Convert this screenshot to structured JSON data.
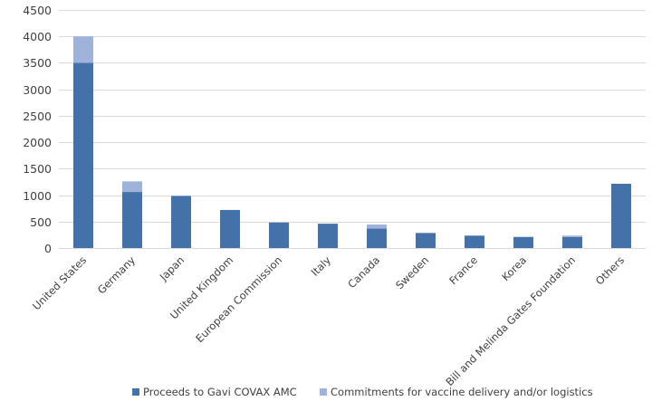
{
  "chart_data": {
    "type": "bar",
    "stacked": true,
    "title": "",
    "xlabel": "",
    "ylabel": "",
    "ylim": [
      0,
      4500
    ],
    "yticks": [
      0,
      500,
      1000,
      1500,
      2000,
      2500,
      3000,
      3500,
      4000,
      4500
    ],
    "grid": true,
    "legend_position": "bottom",
    "categories": [
      "United States",
      "Germany",
      "Japan",
      "United Kingdom",
      "European Commission",
      "Italy",
      "Canada",
      "Sweden",
      "France",
      "Korea",
      "Bill and Melinda Gates Foundation",
      "Others"
    ],
    "series": [
      {
        "name": "Proceeds to Gavi COVAX AMC",
        "color": "#4472a8",
        "values": [
          3500,
          1060,
          985,
          720,
          480,
          460,
          370,
          285,
          235,
          210,
          210,
          1215
        ]
      },
      {
        "name": "Commitments for vaccine delivery and/or logistics",
        "color": "#9eb2da",
        "values": [
          500,
          200,
          0,
          0,
          10,
          0,
          75,
          0,
          0,
          0,
          25,
          0
        ]
      }
    ]
  }
}
